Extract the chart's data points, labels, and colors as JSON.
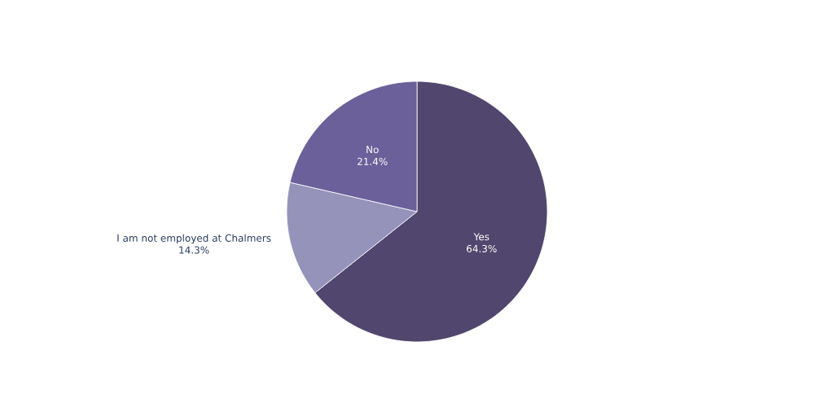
{
  "chart_data": {
    "type": "pie",
    "categories": [
      "Yes",
      "I am not employed at Chalmers",
      "No"
    ],
    "values": [
      64.3,
      14.3,
      21.4
    ],
    "value_labels": [
      "64.3%",
      "14.3%",
      "21.4%"
    ],
    "colors": [
      "#51466d",
      "#9593ba",
      "#6b6099"
    ]
  }
}
